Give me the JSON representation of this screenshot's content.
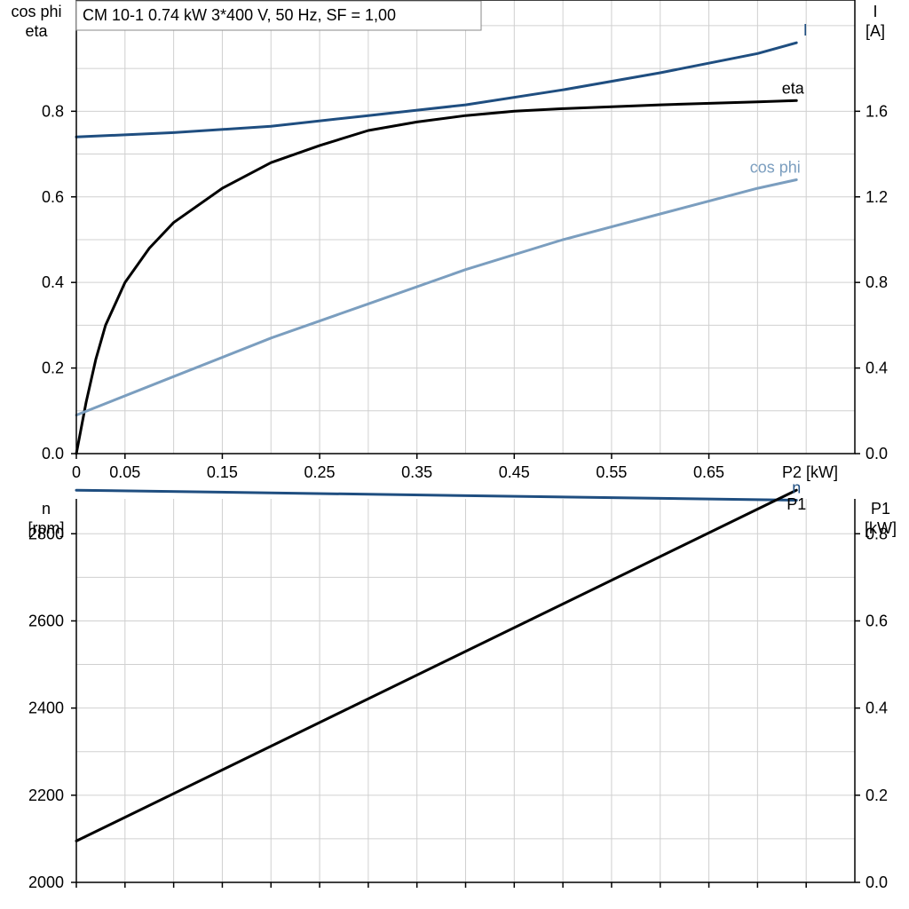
{
  "chart_data": [
    {
      "type": "line",
      "panel": "top",
      "title": "CM 10-1   0.74 kW   3*400 V, 50 Hz, SF = 1,00",
      "xlabel": "P2 [kW]",
      "x_tick_labels": [
        "0",
        "0.05",
        "0.15",
        "0.25",
        "0.35",
        "0.45",
        "0.55",
        "0.65"
      ],
      "x_ticks": [
        0,
        0.05,
        0.15,
        0.25,
        0.35,
        0.45,
        0.55,
        0.65
      ],
      "xlim": [
        0,
        0.8
      ],
      "ylabel_left": [
        "cos phi",
        "eta"
      ],
      "ylim_left": [
        0,
        1.06
      ],
      "y_ticks_left": [
        0.0,
        0.2,
        0.4,
        0.6,
        0.8
      ],
      "y_tick_labels_left": [
        "0.0",
        "0.2",
        "0.4",
        "0.6",
        "0.8"
      ],
      "ylabel_right": [
        "I",
        "[A]"
      ],
      "ylim_right": [
        0,
        2.12
      ],
      "y_ticks_right": [
        0.0,
        0.4,
        0.8,
        1.2,
        1.6
      ],
      "y_tick_labels_right": [
        "0.0",
        "0.4",
        "0.8",
        "1.2",
        "1.6"
      ],
      "grid": true,
      "series": [
        {
          "name": "I",
          "axis": "right",
          "color": "#1f4e80",
          "x": [
            0,
            0.1,
            0.2,
            0.3,
            0.4,
            0.5,
            0.6,
            0.7,
            0.74
          ],
          "y": [
            1.48,
            1.5,
            1.53,
            1.58,
            1.63,
            1.7,
            1.78,
            1.87,
            1.92
          ]
        },
        {
          "name": "eta",
          "axis": "left",
          "color": "#000000",
          "x": [
            0,
            0.01,
            0.02,
            0.03,
            0.05,
            0.075,
            0.1,
            0.15,
            0.2,
            0.25,
            0.3,
            0.35,
            0.4,
            0.45,
            0.5,
            0.6,
            0.7,
            0.74
          ],
          "y": [
            0.0,
            0.12,
            0.22,
            0.3,
            0.4,
            0.48,
            0.54,
            0.62,
            0.68,
            0.72,
            0.755,
            0.775,
            0.79,
            0.8,
            0.806,
            0.815,
            0.822,
            0.825
          ]
        },
        {
          "name": "cos phi",
          "axis": "left",
          "color": "#7b9ebf",
          "x": [
            0,
            0.1,
            0.2,
            0.3,
            0.4,
            0.5,
            0.6,
            0.7,
            0.74
          ],
          "y": [
            0.09,
            0.18,
            0.27,
            0.35,
            0.43,
            0.5,
            0.56,
            0.62,
            0.64
          ]
        }
      ]
    },
    {
      "type": "line",
      "panel": "bottom",
      "ylabel_left": [
        "n",
        "[rpm]"
      ],
      "ylim_left": [
        2000,
        2880
      ],
      "y_ticks_left": [
        2000,
        2200,
        2400,
        2600,
        2800
      ],
      "y_tick_labels_left": [
        "2000",
        "2200",
        "2400",
        "2600",
        "2800"
      ],
      "ylabel_right": [
        "P1",
        "[kW]"
      ],
      "ylim_right": [
        0,
        0.88
      ],
      "y_ticks_right": [
        0.0,
        0.2,
        0.4,
        0.6,
        0.8
      ],
      "y_tick_labels_right": [
        "0.0",
        "0.2",
        "0.4",
        "0.6",
        "0.8"
      ],
      "xlim": [
        0,
        0.8
      ],
      "grid": true,
      "series": [
        {
          "name": "n",
          "axis": "left",
          "color": "#1f4e80",
          "x": [
            0,
            0.74
          ],
          "y": [
            2900,
            2877
          ]
        },
        {
          "name": "P1",
          "axis": "right",
          "color": "#000000",
          "x": [
            0,
            0.74
          ],
          "y": [
            0.095,
            0.9
          ]
        }
      ]
    }
  ]
}
